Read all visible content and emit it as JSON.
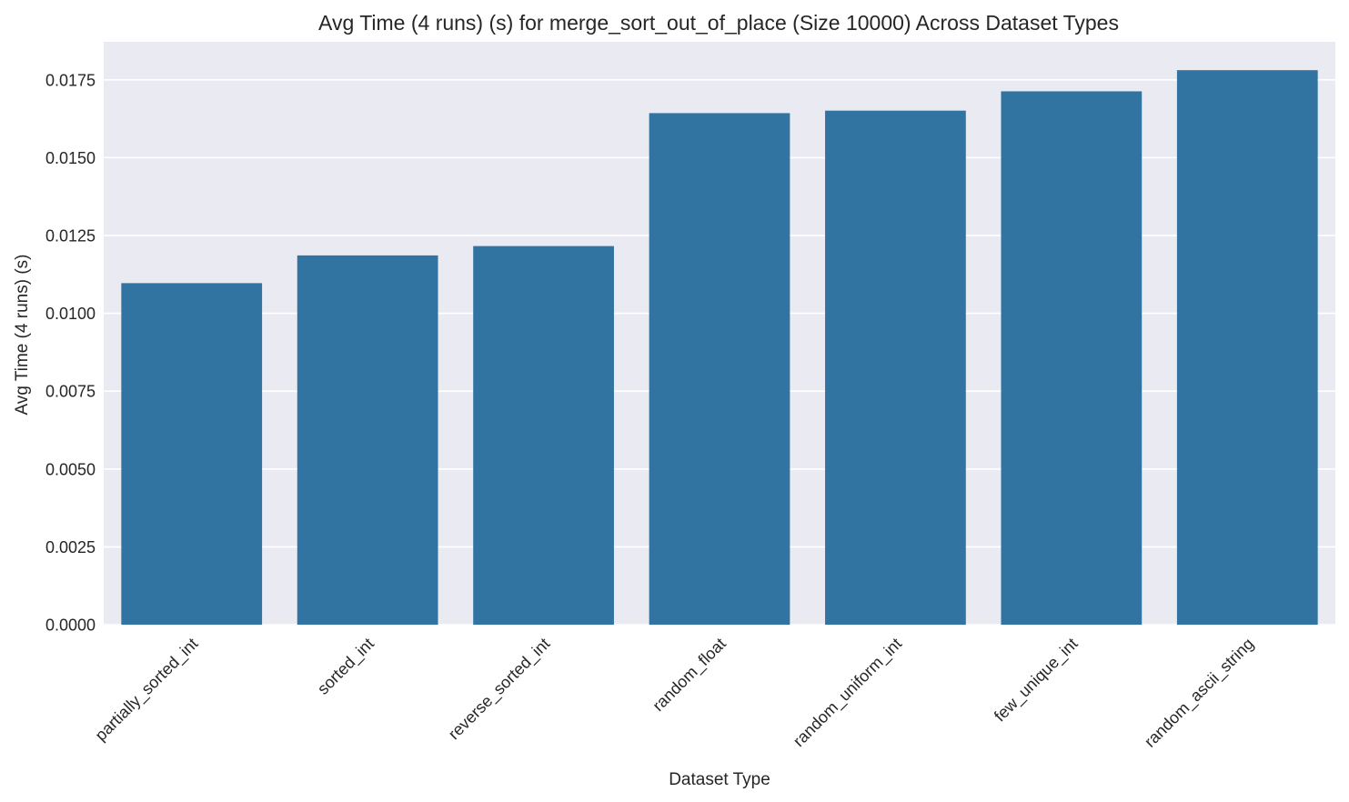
{
  "chart_data": {
    "type": "bar",
    "title": "Avg Time (4 runs) (s) for merge_sort_out_of_place (Size 10000) Across Dataset Types",
    "xlabel": "Dataset Type",
    "ylabel": "Avg Time (4 runs) (s)",
    "categories": [
      "partially_sorted_int",
      "sorted_int",
      "reverse_sorted_int",
      "random_float",
      "random_uniform_int",
      "few_unique_int",
      "random_ascii_string"
    ],
    "values": [
      0.01097,
      0.01186,
      0.01216,
      0.01643,
      0.01651,
      0.01713,
      0.01781
    ],
    "ylim": [
      0,
      0.01872
    ],
    "yticks": [
      0.0,
      0.0025,
      0.005,
      0.0075,
      0.01,
      0.0125,
      0.015,
      0.0175
    ],
    "ytick_labels": [
      "0.0000",
      "0.0025",
      "0.0050",
      "0.0075",
      "0.0100",
      "0.0125",
      "0.0150",
      "0.0175"
    ],
    "grid": true,
    "legend": "none",
    "colors": {
      "bar": "#3274a1",
      "background": "#eaeaf2",
      "grid": "#ffffff",
      "text": "#262626"
    }
  }
}
